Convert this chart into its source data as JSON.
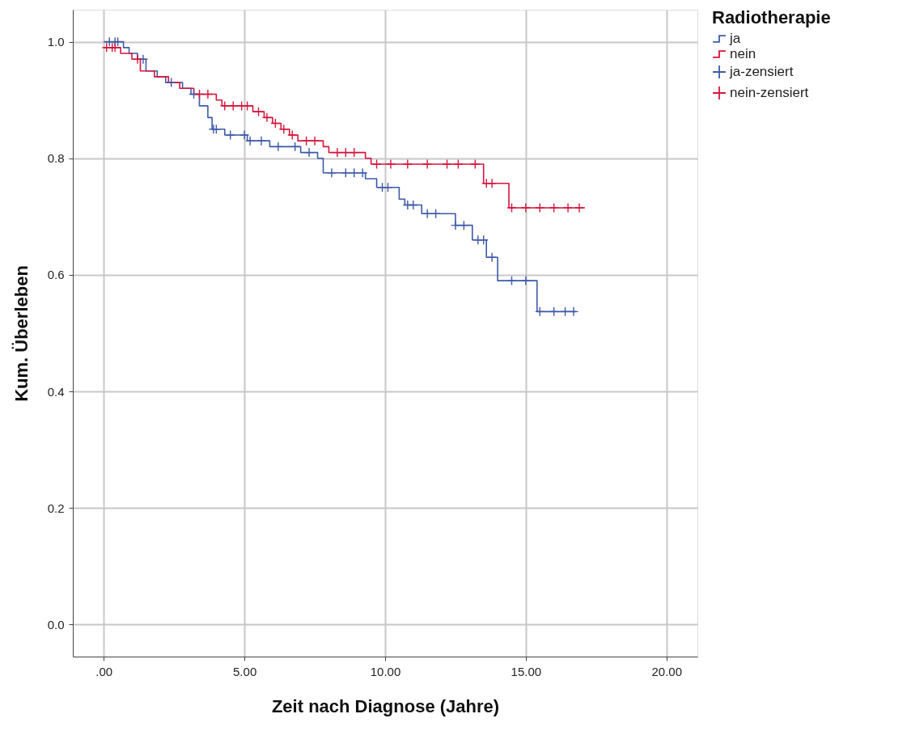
{
  "chart_data": {
    "type": "step",
    "xlabel": "Zeit nach Diagnose (Jahre)",
    "ylabel": "Kum. Überleben",
    "legend_title": "Radiotherapie",
    "xlim": [
      -1.1,
      21.1
    ],
    "xticks": [
      {
        "value": 0,
        "label": ".00"
      },
      {
        "value": 5,
        "label": "5.00"
      },
      {
        "value": 10,
        "label": "10.00"
      },
      {
        "value": 15,
        "label": "15.00"
      },
      {
        "value": 20,
        "label": "20.00"
      }
    ],
    "ylim": [
      -0.055,
      1.055
    ],
    "yticks": [
      {
        "value": 0,
        "label": "0.0"
      },
      {
        "value": 0.2,
        "label": "0.2"
      },
      {
        "value": 0.4,
        "label": "0.4"
      },
      {
        "value": 0.6,
        "label": "0.6"
      },
      {
        "value": 0.8,
        "label": "0.8"
      },
      {
        "value": 1,
        "label": "1.0"
      }
    ],
    "grid": true,
    "legend": "top right",
    "line_style": "solid",
    "series": [
      {
        "name": "ja",
        "color": "#3e5aa8",
        "x": [
          0,
          0.7,
          0.9,
          1.2,
          1.5,
          1.9,
          2.2,
          2.8,
          3.1,
          3.4,
          3.7,
          3.85,
          4.3,
          5.1,
          5.9,
          7.0,
          7.6,
          7.8,
          9.3,
          9.7,
          10.5,
          10.7,
          11.3,
          12.5,
          13.1,
          13.6,
          14.0,
          15.4,
          16.8
        ],
        "values": [
          1.0,
          0.99,
          0.98,
          0.97,
          0.95,
          0.94,
          0.93,
          0.92,
          0.91,
          0.89,
          0.87,
          0.85,
          0.84,
          0.83,
          0.82,
          0.81,
          0.8,
          0.775,
          0.765,
          0.75,
          0.73,
          0.72,
          0.705,
          0.685,
          0.66,
          0.63,
          0.59,
          0.537,
          0.537
        ]
      },
      {
        "name": "nein",
        "color": "#d4163c",
        "x": [
          0,
          0.6,
          1.0,
          1.3,
          1.8,
          2.3,
          2.7,
          3.2,
          4.0,
          4.2,
          5.3,
          5.7,
          6.0,
          6.3,
          6.6,
          6.9,
          7.8,
          8.0,
          9.3,
          9.5,
          13.5,
          14.4,
          17.1
        ],
        "values": [
          0.99,
          0.98,
          0.97,
          0.95,
          0.94,
          0.93,
          0.92,
          0.91,
          0.9,
          0.89,
          0.88,
          0.87,
          0.86,
          0.85,
          0.84,
          0.83,
          0.82,
          0.81,
          0.8,
          0.79,
          0.757,
          0.715,
          0.715
        ]
      },
      {
        "name": "ja-zensiert",
        "type": "scatter",
        "marker": "cross",
        "color": "#3e5aa8",
        "x": [
          0.2,
          0.4,
          0.5,
          1.4,
          2.4,
          3.2,
          3.9,
          4.0,
          4.5,
          5.0,
          5.2,
          5.6,
          6.2,
          6.8,
          7.3,
          8.1,
          8.6,
          8.9,
          9.2,
          9.9,
          10.1,
          10.8,
          11.0,
          11.5,
          11.8,
          12.5,
          12.8,
          13.3,
          13.5,
          13.8,
          14.5,
          15.0,
          15.5,
          16.0,
          16.4,
          16.7
        ],
        "values": [
          1.0,
          1.0,
          1.0,
          0.97,
          0.93,
          0.91,
          0.85,
          0.85,
          0.84,
          0.84,
          0.83,
          0.83,
          0.82,
          0.82,
          0.81,
          0.775,
          0.775,
          0.775,
          0.775,
          0.75,
          0.75,
          0.72,
          0.72,
          0.705,
          0.705,
          0.685,
          0.685,
          0.66,
          0.66,
          0.63,
          0.59,
          0.59,
          0.537,
          0.537,
          0.537,
          0.537
        ]
      },
      {
        "name": "nein-zensiert",
        "type": "scatter",
        "marker": "cross",
        "color": "#d4163c",
        "x": [
          0.1,
          0.3,
          0.4,
          1.2,
          3.4,
          3.7,
          4.3,
          4.6,
          4.9,
          5.1,
          5.5,
          5.8,
          6.1,
          6.4,
          6.7,
          7.2,
          7.5,
          8.3,
          8.6,
          8.9,
          9.7,
          10.2,
          10.8,
          11.5,
          12.2,
          12.6,
          13.2,
          13.6,
          13.8,
          14.5,
          15.0,
          15.5,
          16.0,
          16.5,
          16.9
        ],
        "values": [
          0.99,
          0.99,
          0.99,
          0.97,
          0.91,
          0.91,
          0.89,
          0.89,
          0.89,
          0.89,
          0.88,
          0.87,
          0.86,
          0.85,
          0.84,
          0.83,
          0.83,
          0.81,
          0.81,
          0.81,
          0.79,
          0.79,
          0.79,
          0.79,
          0.79,
          0.79,
          0.79,
          0.757,
          0.757,
          0.715,
          0.715,
          0.715,
          0.715,
          0.715,
          0.715
        ]
      }
    ]
  }
}
